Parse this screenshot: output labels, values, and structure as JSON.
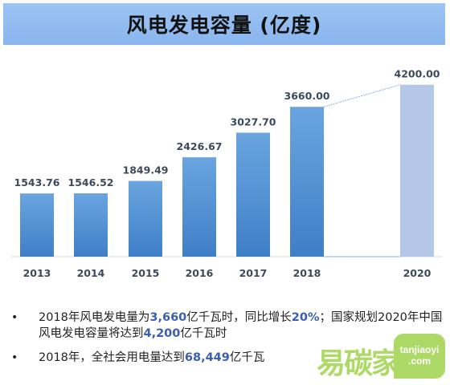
{
  "title": "风电发电容量 (亿度)",
  "chart_data": {
    "type": "bar",
    "categories": [
      "2013",
      "2014",
      "2015",
      "2016",
      "2017",
      "2018",
      "2020"
    ],
    "values": [
      1543.76,
      1546.52,
      1849.49,
      2426.67,
      3027.7,
      3660.0,
      4200.0
    ],
    "value_labels": [
      "1543.76",
      "1546.52",
      "1849.49",
      "2426.67",
      "3027.70",
      "3660.00",
      "4200.00"
    ],
    "projected_category": "2020",
    "ylim": [
      0,
      4800
    ],
    "colors": {
      "bar_top": "#6aa5e0",
      "bar_bottom": "#3f7fc8",
      "projected": "#b4c7e7",
      "connector": "#8fb0de"
    }
  },
  "bullets": [
    {
      "parts": [
        {
          "text": "2018年风电发电量为"
        },
        {
          "text": "3,660",
          "highlight": true
        },
        {
          "text": "亿千瓦时，同比增长"
        },
        {
          "text": "20%",
          "highlight": true
        },
        {
          "text": "；国家规划2020年中国风电发电容量将达到"
        },
        {
          "text": "4,200",
          "highlight": true
        },
        {
          "text": "亿千瓦时"
        }
      ]
    },
    {
      "parts": [
        {
          "text": "2018年，全社会用电量达到"
        },
        {
          "text": "68,449",
          "highlight": true
        },
        {
          "text": "亿千瓦"
        }
      ]
    }
  ],
  "bullet_symbol": "•",
  "watermark": {
    "brand": "易碳家",
    "line1": "tanjiaoyi",
    "line2": ".com"
  }
}
